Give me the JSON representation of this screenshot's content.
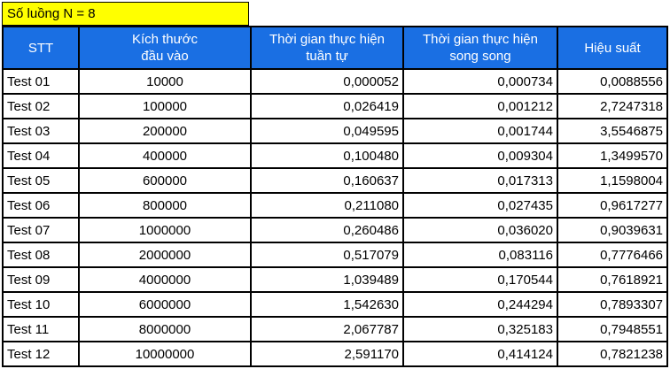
{
  "title": "Số luồng N = 8",
  "headers": [
    "STT",
    "Kích thước\nđầu vào",
    "Thời gian thực hiện\ntuần tự",
    "Thời gian thực hiện\nsong song",
    "Hiệu suất"
  ],
  "rows": [
    [
      "Test 01",
      "10000",
      "0,000052",
      "0,000734",
      "0,0088556"
    ],
    [
      "Test 02",
      "100000",
      "0,026419",
      "0,001212",
      "2,7247318"
    ],
    [
      "Test 03",
      "200000",
      "0,049595",
      "0,001744",
      "3,5546875"
    ],
    [
      "Test 04",
      "400000",
      "0,100480",
      "0,009304",
      "1,3499570"
    ],
    [
      "Test 05",
      "600000",
      "0,160637",
      "0,017313",
      "1,1598004"
    ],
    [
      "Test 06",
      "800000",
      "0,211080",
      "0,027435",
      "0,9617277"
    ],
    [
      "Test 07",
      "1000000",
      "0,260486",
      "0,036020",
      "0,9039631"
    ],
    [
      "Test 08",
      "2000000",
      "0,517079",
      "0,083116",
      "0,7776466"
    ],
    [
      "Test 09",
      "4000000",
      "1,039489",
      "0,170544",
      "0,7618921"
    ],
    [
      "Test 10",
      "6000000",
      "1,542630",
      "0,244294",
      "0,7893307"
    ],
    [
      "Test 11",
      "8000000",
      "2,067787",
      "0,325183",
      "0,7948551"
    ],
    [
      "Test 12",
      "10000000",
      "2,591170",
      "0,414124",
      "0,7821238"
    ]
  ]
}
